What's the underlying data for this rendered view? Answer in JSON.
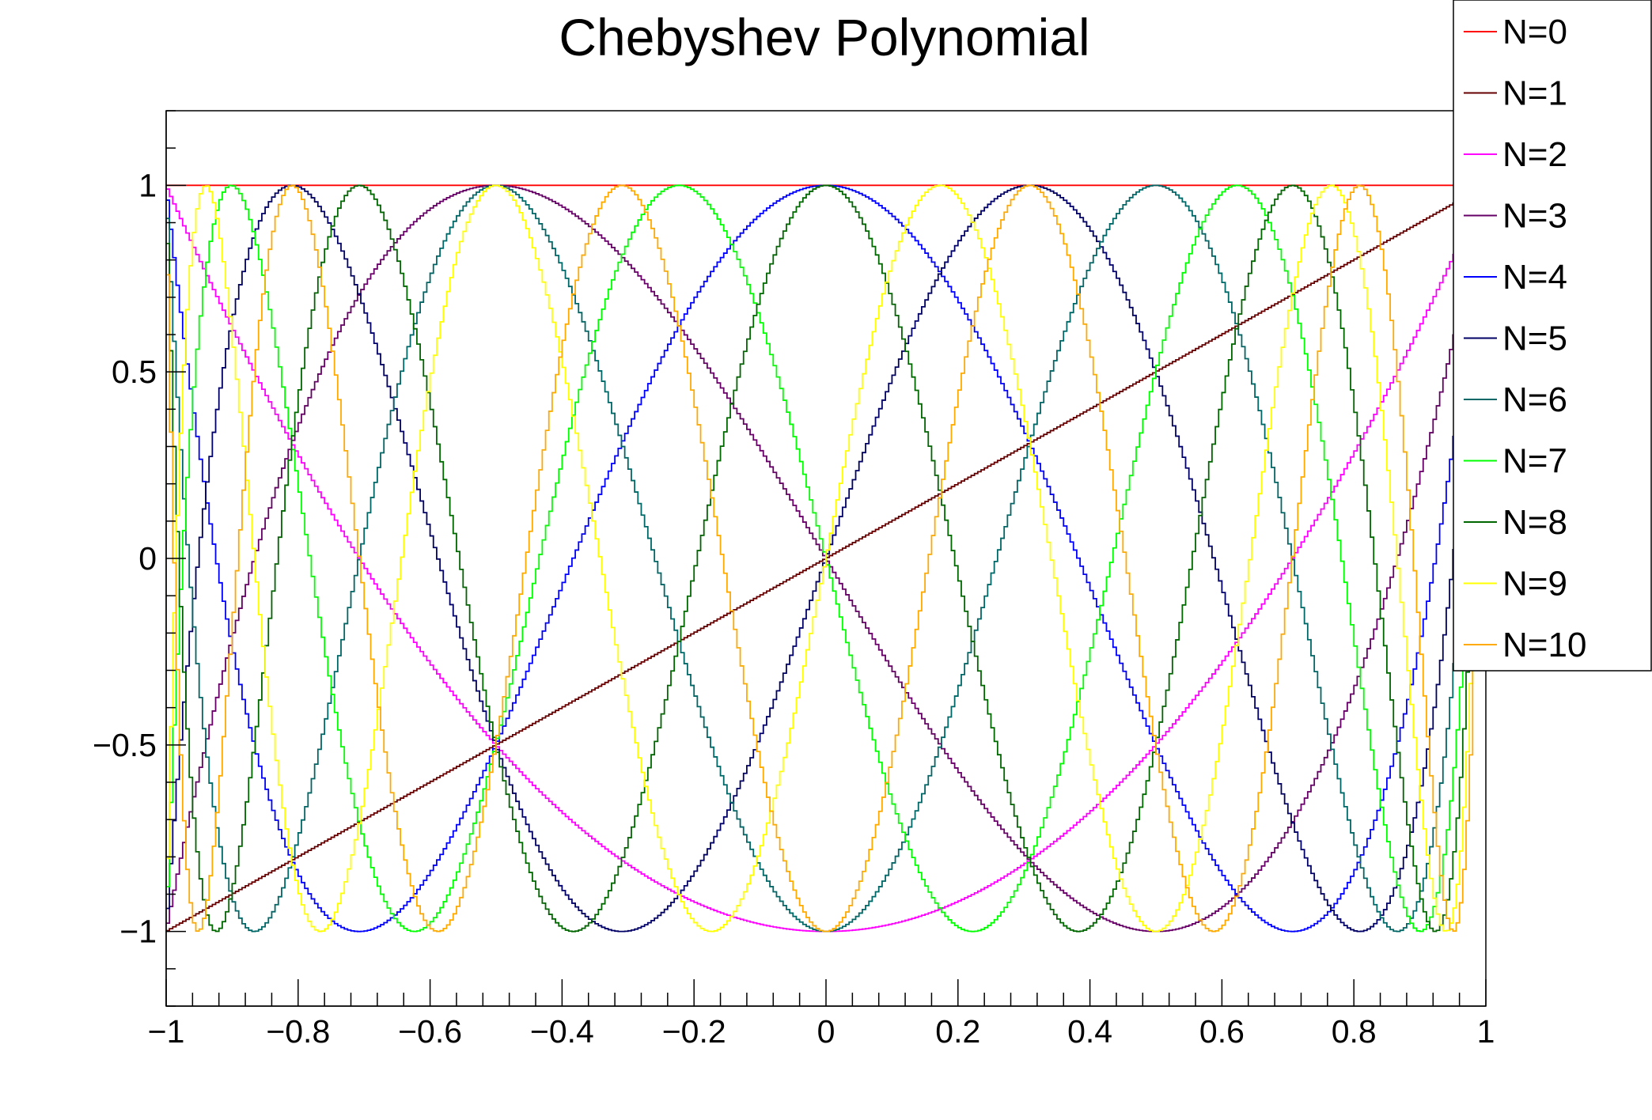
{
  "chart_data": {
    "type": "line",
    "title": "Chebyshev Polynomial",
    "xlabel": "",
    "ylabel": "",
    "xlim": [
      -1,
      1
    ],
    "ylim": [
      -1.2,
      1.2
    ],
    "grid": false,
    "legend_position": "top-right",
    "x_ticks": [
      -1,
      -0.8,
      -0.6,
      -0.4,
      -0.2,
      0,
      0.2,
      0.4,
      0.6,
      0.8,
      1
    ],
    "x_tick_labels": [
      "−1",
      "−0.8",
      "−0.6",
      "−0.4",
      "−0.2",
      "0",
      "0.2",
      "0.4",
      "0.6",
      "0.8",
      "1"
    ],
    "y_ticks": [
      -1,
      -0.5,
      0,
      0.5,
      1
    ],
    "y_tick_labels": [
      "−1",
      "−0.5",
      "0",
      "0.5",
      "1"
    ],
    "series": [
      {
        "name": "N=0",
        "degree": 0,
        "color": "#ff0000"
      },
      {
        "name": "N=1",
        "degree": 1,
        "color": "#660000"
      },
      {
        "name": "N=2",
        "degree": 2,
        "color": "#ff00ff"
      },
      {
        "name": "N=3",
        "degree": 3,
        "color": "#660066"
      },
      {
        "name": "N=4",
        "degree": 4,
        "color": "#0000ff"
      },
      {
        "name": "N=5",
        "degree": 5,
        "color": "#000066"
      },
      {
        "name": "N=6",
        "degree": 6,
        "color": "#006666"
      },
      {
        "name": "N=7",
        "degree": 7,
        "color": "#00ff00"
      },
      {
        "name": "N=8",
        "degree": 8,
        "color": "#006600"
      },
      {
        "name": "N=9",
        "degree": 9,
        "color": "#ffff00"
      },
      {
        "name": "N=10",
        "degree": 10,
        "color": "#ffaa00"
      }
    ]
  }
}
